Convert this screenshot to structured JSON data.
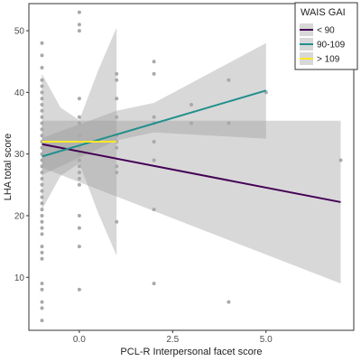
{
  "chart_data": {
    "type": "scatter",
    "title": "",
    "xlabel": "PCL-R Interpersonal facet score",
    "ylabel": "LHA total score",
    "xlim": [
      -1.35,
      7.35
    ],
    "ylim": [
      1.4,
      54.4
    ],
    "x_ticks": [
      0.0,
      2.5,
      5.0
    ],
    "x_tick_labels": [
      "0.0",
      "2.5",
      "5.0"
    ],
    "y_ticks": [
      10,
      20,
      30,
      40,
      50
    ],
    "y_tick_labels": [
      "10",
      "20",
      "30",
      "40",
      "50"
    ],
    "grid": false,
    "point_color": "#a9a9a9",
    "points": [
      [
        -1,
        48
      ],
      [
        -1,
        46
      ],
      [
        -1,
        44
      ],
      [
        -1,
        42
      ],
      [
        -1,
        41
      ],
      [
        -1,
        40
      ],
      [
        -1,
        39
      ],
      [
        -1,
        38
      ],
      [
        -1,
        37
      ],
      [
        -1,
        36
      ],
      [
        -1,
        35
      ],
      [
        -1,
        34
      ],
      [
        -1,
        33
      ],
      [
        -1,
        32
      ],
      [
        -1,
        31
      ],
      [
        -1,
        30
      ],
      [
        -1,
        29
      ],
      [
        -1,
        28
      ],
      [
        -1,
        27
      ],
      [
        -1,
        26
      ],
      [
        -1,
        25
      ],
      [
        -1,
        24
      ],
      [
        -1,
        23
      ],
      [
        -1,
        22
      ],
      [
        -1,
        21
      ],
      [
        -1,
        20
      ],
      [
        -1,
        19
      ],
      [
        -1,
        18
      ],
      [
        -1,
        17
      ],
      [
        -1,
        15
      ],
      [
        -1,
        14
      ],
      [
        -1,
        13
      ],
      [
        -1,
        9
      ],
      [
        -1,
        8
      ],
      [
        -1,
        6
      ],
      [
        -1,
        5
      ],
      [
        -1,
        3
      ],
      [
        0,
        53
      ],
      [
        0,
        51
      ],
      [
        0,
        50
      ],
      [
        0,
        39
      ],
      [
        0,
        36
      ],
      [
        0,
        35
      ],
      [
        0,
        33
      ],
      [
        0,
        32
      ],
      [
        0,
        31
      ],
      [
        0,
        30
      ],
      [
        0,
        29
      ],
      [
        0,
        28
      ],
      [
        0,
        27
      ],
      [
        0,
        26
      ],
      [
        0,
        25
      ],
      [
        0,
        20
      ],
      [
        0,
        18
      ],
      [
        0,
        15
      ],
      [
        0,
        8
      ],
      [
        1,
        43
      ],
      [
        1,
        42
      ],
      [
        1,
        39
      ],
      [
        1,
        36
      ],
      [
        1,
        33
      ],
      [
        1,
        32
      ],
      [
        1,
        31
      ],
      [
        1,
        28
      ],
      [
        1,
        27
      ],
      [
        1,
        19
      ],
      [
        2,
        45
      ],
      [
        2,
        43
      ],
      [
        2,
        36
      ],
      [
        2,
        35
      ],
      [
        2,
        32
      ],
      [
        2,
        29
      ],
      [
        2,
        21
      ],
      [
        2,
        9
      ],
      [
        3,
        38
      ],
      [
        3,
        35
      ],
      [
        4,
        42
      ],
      [
        4,
        35
      ],
      [
        4,
        6
      ],
      [
        5,
        40
      ],
      [
        7,
        29
      ]
    ],
    "series": [
      {
        "name": "< 90",
        "color": "#440154",
        "x": [
          -1,
          7
        ],
        "y": [
          31.6,
          22.2
        ],
        "ci_x": [
          -1,
          7
        ],
        "ci_lower": [
          27.8,
          9.0
        ],
        "ci_upper": [
          35.4,
          35.4
        ]
      },
      {
        "name": "90-109",
        "color": "#21908c",
        "x": [
          -1,
          5
        ],
        "y": [
          29.6,
          40.3
        ],
        "ci_x": [
          -1,
          1,
          2,
          5
        ],
        "ci_lower": [
          26.6,
          32.2,
          33.5,
          32.5
        ],
        "ci_upper": [
          32.6,
          37.0,
          38.3,
          48.0
        ]
      },
      {
        "name": "> 109",
        "color": "#fde725",
        "x": [
          -1,
          1
        ],
        "y": [
          32.0,
          32.0
        ],
        "ci_x": [
          -1,
          -0.5,
          0,
          0.5,
          1
        ],
        "ci_lower": [
          21.0,
          26.5,
          28.5,
          20.5,
          13.5
        ],
        "ci_upper": [
          43.0,
          37.5,
          35.5,
          43.5,
          50.5
        ]
      }
    ],
    "ci_fill": "#999999",
    "legend": {
      "title": "WAIS GAI",
      "position": "top-right",
      "items": [
        "< 90",
        "90-109",
        "> 109"
      ]
    }
  }
}
